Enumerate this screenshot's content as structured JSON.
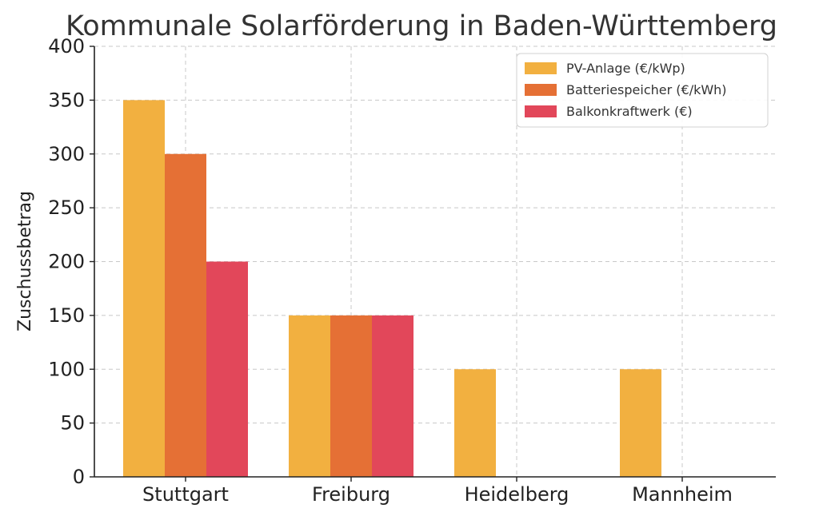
{
  "chart_data": {
    "type": "bar",
    "title": "Kommunale Solarförderung in Baden-Württemberg",
    "xlabel": "",
    "ylabel": "Zuschussbetrag",
    "categories": [
      "Stuttgart",
      "Freiburg",
      "Heidelberg",
      "Mannheim"
    ],
    "series": [
      {
        "name": "PV-Anlage (€/kWp)",
        "values": [
          350,
          150,
          100,
          100
        ],
        "color": "#F2B040"
      },
      {
        "name": "Batteriespeicher (€/kWh)",
        "values": [
          300,
          150,
          0,
          0
        ],
        "color": "#E57035"
      },
      {
        "name": "Balkonkraftwerk (€)",
        "values": [
          200,
          150,
          0,
          0
        ],
        "color": "#E2475A"
      }
    ],
    "ylim": [
      0,
      400
    ],
    "yticks": [
      0,
      50,
      100,
      150,
      200,
      250,
      300,
      350,
      400
    ],
    "grid": true,
    "legend_position": "top-right"
  }
}
